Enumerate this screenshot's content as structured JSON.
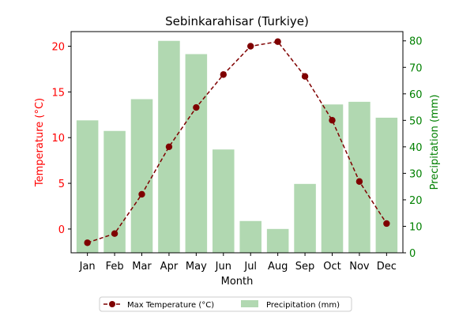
{
  "chart_data": {
    "type": "bar+line",
    "title": "Sebinkarahisar (Turkiye)",
    "xlabel": "Month",
    "y_left_label": "Temperature (°C)",
    "y_right_label": "Precipitation (mm)",
    "categories": [
      "Jan",
      "Feb",
      "Mar",
      "Apr",
      "May",
      "Jun",
      "Jul",
      "Aug",
      "Sep",
      "Oct",
      "Nov",
      "Dec"
    ],
    "series": [
      {
        "name": "Max Temperature (°C)",
        "kind": "line",
        "axis": "left",
        "color": "#7f0000",
        "values": [
          -1.5,
          -0.5,
          3.8,
          9.0,
          13.3,
          16.9,
          20.0,
          20.5,
          16.7,
          11.9,
          5.2,
          0.6
        ]
      },
      {
        "name": "Precipitation (mm)",
        "kind": "bar",
        "axis": "right",
        "color": "#b1d8b1",
        "values": [
          50,
          46,
          58,
          80,
          75,
          39,
          12,
          9,
          26,
          56,
          57,
          51
        ]
      }
    ],
    "y_left_lim": [
      -2.6,
      21.6
    ],
    "y_right_lim": [
      0,
      83.5
    ],
    "y_left_ticks": [
      "0",
      "5",
      "10",
      "15",
      "20"
    ],
    "y_right_ticks": [
      "0",
      "10",
      "20",
      "30",
      "40",
      "50",
      "60",
      "70",
      "80"
    ],
    "left_axis_color": "#ff0000",
    "right_axis_color": "#008000",
    "grid": false,
    "legend_position": "bottom-center"
  }
}
